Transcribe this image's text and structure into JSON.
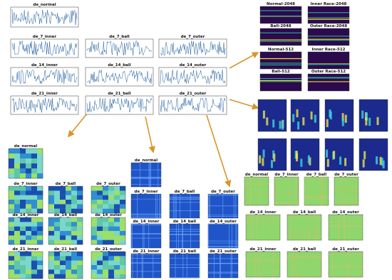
{
  "signal_plots": {
    "titles": [
      "de_normal",
      "de_7_inner",
      "de_7_ball",
      "de_7_outer",
      "de_14_inner",
      "de_14_ball",
      "de_14_outer",
      "de_21_inner",
      "de_21_ball",
      "de_21_outer"
    ]
  },
  "spectrograms": {
    "titles": [
      "Normal-2048",
      "Inner Race-2048",
      "Ball-2048",
      "Outer Race-2048",
      "Normal-512",
      "Inner Race-512",
      "Ball-512",
      "Outer Race-512"
    ]
  },
  "recurrence_plots": {
    "titles": [
      "de_normal",
      "de_7_inner",
      "de_7_ball",
      "de_7_outer",
      "de_14_inner",
      "de_14_ball",
      "de_14_outer",
      "de_21_inner",
      "de_21_ball",
      "de_21_outer"
    ]
  },
  "gramian_fields": {
    "titles": [
      "de_normal",
      "de_7_inner",
      "de_7_ball",
      "de_7_outer",
      "de_14_inner",
      "de_14_ball",
      "de_14_outer",
      "de_21_inner",
      "de_21_ball",
      "de_21_outer"
    ]
  },
  "texture_images": {
    "titles": [
      "de_normal",
      "de_7_inner",
      "de_7_ball",
      "de_7_outer",
      "de_14_inner",
      "de_14_ball",
      "de_14_outer",
      "de_21_inner",
      "de_21_ball",
      "de_21_outer"
    ]
  }
}
